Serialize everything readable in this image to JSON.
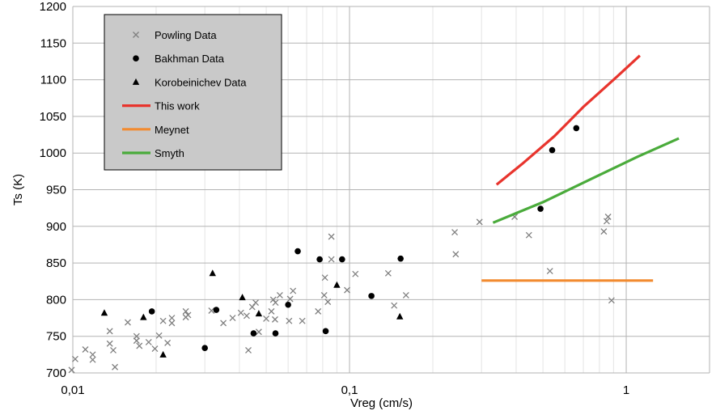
{
  "chart_data": {
    "type": "scatter",
    "title": "",
    "xlabel": "Vreg (cm/s)",
    "ylabel": "Ts (K)",
    "xscale": "log",
    "xlim": [
      0.01,
      2
    ],
    "ylim": [
      700,
      1200
    ],
    "grid": true,
    "legend_position": "top-left",
    "x_tick_labels": [
      {
        "value": 0.01,
        "label": "0,01"
      },
      {
        "value": 0.1,
        "label": "0,1"
      },
      {
        "value": 1,
        "label": "1"
      }
    ],
    "y_tick_labels": [
      "700",
      "750",
      "800",
      "850",
      "900",
      "950",
      "1000",
      "1050",
      "1100",
      "1150",
      "1200"
    ],
    "series": [
      {
        "name": "Powling Data",
        "kind": "scatter",
        "marker": "x",
        "color": "#808080",
        "x": [
          0.0099,
          0.0102,
          0.0111,
          0.0118,
          0.0118,
          0.0136,
          0.0136,
          0.014,
          0.0142,
          0.0158,
          0.017,
          0.017,
          0.0174,
          0.0188,
          0.0198,
          0.0205,
          0.0212,
          0.022,
          0.0228,
          0.0228,
          0.0256,
          0.0256,
          0.0261,
          0.0317,
          0.035,
          0.0378,
          0.0405,
          0.0425,
          0.0431,
          0.0445,
          0.0458,
          0.047,
          0.05,
          0.0522,
          0.053,
          0.0538,
          0.054,
          0.056,
          0.0605,
          0.061,
          0.0625,
          0.0675,
          0.077,
          0.081,
          0.0815,
          0.0835,
          0.086,
          0.086,
          0.098,
          0.105,
          0.138,
          0.145,
          0.16,
          0.24,
          0.242,
          0.295,
          0.395,
          0.445,
          0.53,
          0.83,
          0.85,
          0.86,
          0.885
        ],
        "y": [
          704,
          719,
          732,
          718,
          725,
          757,
          740,
          731,
          708,
          769,
          744,
          750,
          737,
          742,
          733,
          751,
          771,
          741,
          768,
          775,
          776,
          784,
          779,
          785,
          768,
          775,
          782,
          778,
          731,
          790,
          796,
          756,
          774,
          784,
          800,
          773,
          796,
          806,
          771,
          801,
          812,
          771,
          784,
          806,
          830,
          797,
          855,
          886,
          813,
          835,
          836,
          792,
          806,
          892,
          862,
          906,
          913,
          888,
          839,
          893,
          907,
          913,
          799
        ]
      },
      {
        "name": "Bakhman Data",
        "kind": "scatter",
        "marker": "circle",
        "color": "#000000",
        "x": [
          0.0193,
          0.03,
          0.033,
          0.045,
          0.054,
          0.06,
          0.065,
          0.078,
          0.082,
          0.094,
          0.12,
          0.153,
          0.49,
          0.54,
          0.66
        ],
        "y": [
          784,
          734,
          786,
          754,
          754,
          793,
          866,
          855,
          757,
          855,
          805,
          856,
          924,
          1004,
          1034
        ]
      },
      {
        "name": "Korobeinichev Data",
        "kind": "scatter",
        "marker": "triangle",
        "color": "#000000",
        "x": [
          0.013,
          0.018,
          0.0212,
          0.032,
          0.041,
          0.047,
          0.09,
          0.152
        ],
        "y": [
          782,
          776,
          725,
          836,
          803,
          781,
          820,
          777
        ]
      },
      {
        "name": "This work",
        "kind": "line",
        "color": "#e8342d",
        "x": [
          0.34,
          0.42,
          0.55,
          0.7,
          0.9,
          1.12
        ],
        "y": [
          957,
          985,
          1023,
          1063,
          1100,
          1133
        ]
      },
      {
        "name": "Meynet",
        "kind": "line",
        "color": "#f28b30",
        "x": [
          0.3,
          1.25
        ],
        "y": [
          826,
          826
        ]
      },
      {
        "name": "Smyth",
        "kind": "line",
        "color": "#4aab3b",
        "x": [
          0.33,
          0.5,
          0.75,
          1.1,
          1.55
        ],
        "y": [
          905,
          933,
          965,
          995,
          1020
        ]
      }
    ]
  }
}
